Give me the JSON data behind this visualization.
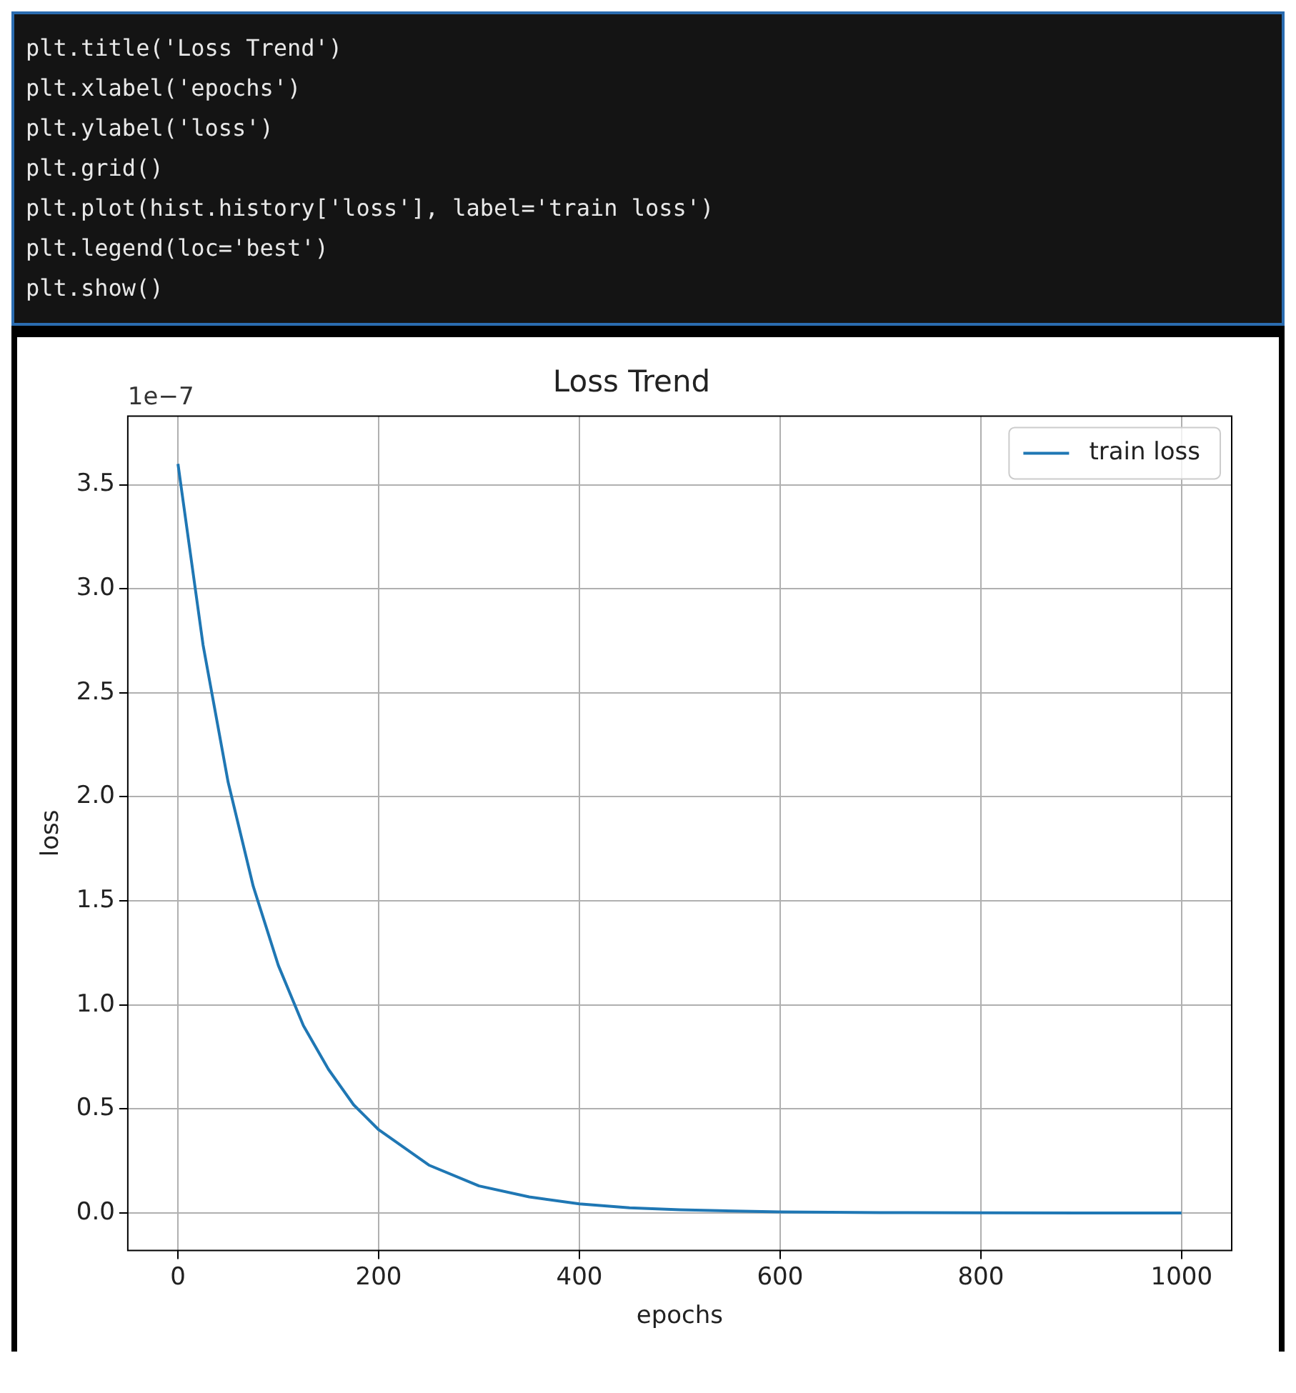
{
  "chart_data": {
    "type": "line",
    "title": "Loss Trend",
    "xlabel": "epochs",
    "ylabel": "loss",
    "annotations": [
      "plt.title('Loss Trend')",
      "plt.xlabel('epochs')",
      "plt.ylabel('loss')",
      "plt.grid()",
      "plt.plot(hist.history['loss'], label='train loss')",
      "plt.legend(loc='best')",
      "plt.show()",
      "1e−7"
    ],
    "x": [
      0,
      25,
      50,
      75,
      100,
      125,
      150,
      175,
      200,
      250,
      300,
      350,
      400,
      450,
      500,
      600,
      700,
      800,
      900,
      1000
    ],
    "series": [
      {
        "name": "train loss",
        "color": "#1f77b4",
        "values": [
          3.6,
          2.73,
          2.07,
          1.57,
          1.19,
          0.9,
          0.69,
          0.52,
          0.4,
          0.23,
          0.13,
          0.077,
          0.044,
          0.025,
          0.015,
          0.005,
          0.002,
          0.001,
          0.0,
          0.0
        ]
      }
    ],
    "xlim": [
      -50,
      1050
    ],
    "xticks": [
      0,
      200,
      400,
      600,
      800,
      1000
    ],
    "ylim": [
      -0.18,
      3.83
    ],
    "yticks": [
      {
        "value": 0,
        "label": "0.0"
      },
      0.5,
      {
        "value": 1,
        "label": "1.0"
      },
      1.5,
      {
        "value": 2,
        "label": "2.0"
      },
      2.5,
      {
        "value": 3,
        "label": "3.0"
      },
      3.5
    ],
    "grid": true,
    "legend": "top right",
    "marker": "none",
    "line_style": "solid"
  }
}
